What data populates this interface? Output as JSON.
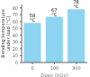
{
  "chart_data": {
    "type": "bar",
    "categories": [
      "0",
      "100",
      "300"
    ],
    "values": [
      58,
      67,
      78
    ],
    "value_labels": [
      "58 °C",
      "67 °C",
      "78 °C"
    ],
    "data_labels": true,
    "color": "#8dd4f0",
    "xlabel": "Dose (kGy)",
    "ylabel": "Bending temperature\nunder load [°C]",
    "ylim": [
      0,
      85
    ],
    "yticks": [
      0,
      10,
      20,
      30,
      40,
      50,
      60,
      70,
      80
    ],
    "grid": false
  }
}
